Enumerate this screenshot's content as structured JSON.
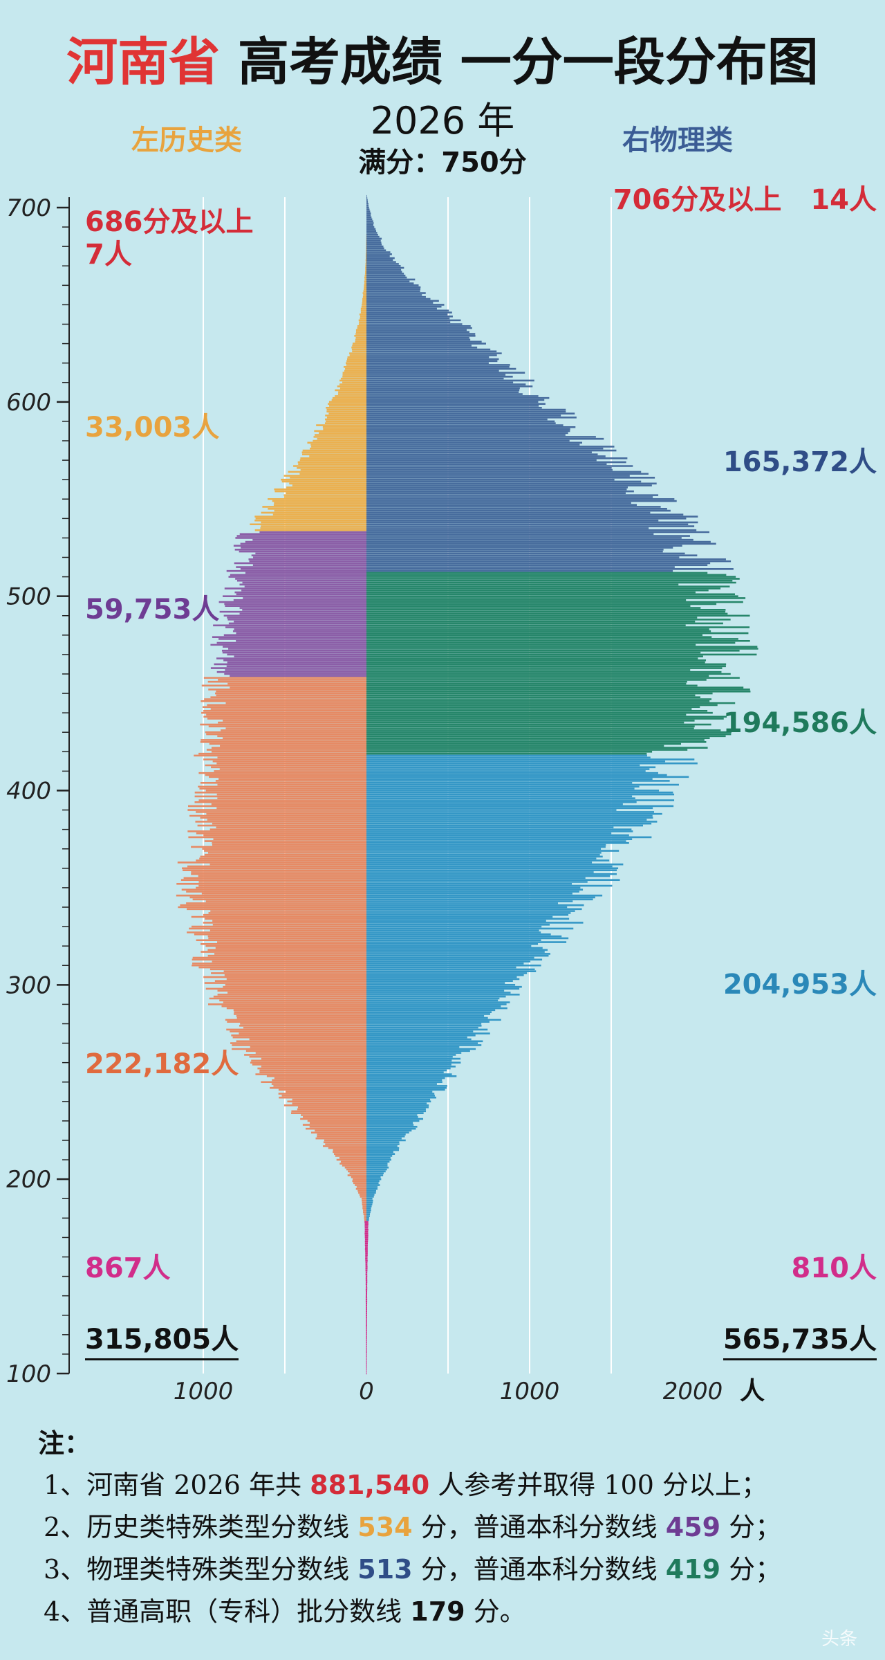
{
  "title": {
    "province": "河南省",
    "rest": "高考成绩 一分一段分布图"
  },
  "year": "2026 年",
  "full_score": {
    "label": "满分：",
    "value": "750分"
  },
  "left_label": "左历史类",
  "right_label": "右物理类",
  "colors": {
    "history_top": "#ebb04f",
    "history_special": "#8b5ea7",
    "history_undergrad": "#e68a64",
    "physics_top": "#476c9d",
    "physics_special": "#26866a",
    "physics_undergrad": "#3497c6",
    "vocational": "#d12d8a",
    "background": "#c6e8ee"
  },
  "labels": {
    "left_top": {
      "value": "686分及以上",
      "count": "7人"
    },
    "right_top": {
      "value": "706分及以上",
      "count": "14人"
    },
    "hist_top_count": "33,003人",
    "hist_special_count": "59,753人",
    "hist_undergrad_count": "222,182人",
    "hist_vocational_count": "867人",
    "hist_total": "315,805人",
    "phys_top_count": "165,372人",
    "phys_special_count": "194,586人",
    "phys_undergrad_count": "204,953人",
    "phys_vocational_count": "810人",
    "phys_total": "565,735人"
  },
  "chart_data": {
    "type": "bar",
    "orientation": "horizontal-mirrored",
    "y_axis": {
      "min": 100,
      "max": 700,
      "ticks": [
        100,
        200,
        300,
        400,
        500,
        600,
        700
      ]
    },
    "x_axis": {
      "left_ticks": [
        "1000",
        "0"
      ],
      "right_ticks": [
        "1000",
        "2000"
      ],
      "unit": "人"
    },
    "thresholds": {
      "history_special": 534,
      "history_undergrad": 459,
      "physics_special": 513,
      "physics_undergrad": 419,
      "vocational": 179
    },
    "history_profile": [
      [
        100,
        2
      ],
      [
        150,
        5
      ],
      [
        178,
        12
      ],
      [
        190,
        30
      ],
      [
        200,
        90
      ],
      [
        210,
        170
      ],
      [
        220,
        280
      ],
      [
        230,
        390
      ],
      [
        240,
        480
      ],
      [
        250,
        600
      ],
      [
        260,
        700
      ],
      [
        270,
        780
      ],
      [
        280,
        850
      ],
      [
        290,
        900
      ],
      [
        300,
        940
      ],
      [
        310,
        980
      ],
      [
        320,
        1010
      ],
      [
        330,
        1040
      ],
      [
        340,
        1060
      ],
      [
        350,
        1070
      ],
      [
        360,
        1060
      ],
      [
        370,
        1040
      ],
      [
        380,
        1010
      ],
      [
        390,
        1000
      ],
      [
        400,
        990
      ],
      [
        410,
        975
      ],
      [
        420,
        965
      ],
      [
        430,
        955
      ],
      [
        440,
        945
      ],
      [
        450,
        930
      ],
      [
        460,
        910
      ],
      [
        470,
        895
      ],
      [
        480,
        870
      ],
      [
        490,
        850
      ],
      [
        500,
        820
      ],
      [
        510,
        790
      ],
      [
        520,
        760
      ],
      [
        534,
        720
      ],
      [
        540,
        640
      ],
      [
        550,
        560
      ],
      [
        560,
        480
      ],
      [
        570,
        390
      ],
      [
        580,
        330
      ],
      [
        590,
        270
      ],
      [
        600,
        210
      ],
      [
        610,
        160
      ],
      [
        620,
        120
      ],
      [
        630,
        80
      ],
      [
        640,
        50
      ],
      [
        650,
        30
      ],
      [
        660,
        15
      ],
      [
        670,
        6
      ],
      [
        686,
        1
      ]
    ],
    "physics_profile": [
      [
        100,
        2
      ],
      [
        150,
        5
      ],
      [
        178,
        12
      ],
      [
        190,
        40
      ],
      [
        200,
        90
      ],
      [
        210,
        150
      ],
      [
        220,
        230
      ],
      [
        230,
        310
      ],
      [
        240,
        390
      ],
      [
        250,
        480
      ],
      [
        260,
        560
      ],
      [
        270,
        650
      ],
      [
        280,
        740
      ],
      [
        290,
        830
      ],
      [
        300,
        920
      ],
      [
        310,
        1010
      ],
      [
        320,
        1100
      ],
      [
        330,
        1190
      ],
      [
        340,
        1280
      ],
      [
        350,
        1380
      ],
      [
        360,
        1470
      ],
      [
        370,
        1560
      ],
      [
        380,
        1630
      ],
      [
        390,
        1700
      ],
      [
        400,
        1780
      ],
      [
        410,
        1850
      ],
      [
        419,
        1880
      ],
      [
        430,
        2060
      ],
      [
        440,
        2120
      ],
      [
        450,
        2160
      ],
      [
        460,
        2180
      ],
      [
        470,
        2190
      ],
      [
        480,
        2180
      ],
      [
        490,
        2160
      ],
      [
        500,
        2140
      ],
      [
        510,
        2100
      ],
      [
        520,
        2030
      ],
      [
        530,
        1960
      ],
      [
        540,
        1870
      ],
      [
        550,
        1780
      ],
      [
        560,
        1650
      ],
      [
        570,
        1530
      ],
      [
        580,
        1380
      ],
      [
        590,
        1230
      ],
      [
        600,
        1090
      ],
      [
        610,
        960
      ],
      [
        620,
        830
      ],
      [
        630,
        700
      ],
      [
        640,
        570
      ],
      [
        650,
        440
      ],
      [
        660,
        310
      ],
      [
        670,
        200
      ],
      [
        680,
        110
      ],
      [
        690,
        50
      ],
      [
        700,
        15
      ],
      [
        706,
        3
      ]
    ]
  },
  "notes": {
    "heading": "注：",
    "n1": {
      "a": "1、河南省 2026 年共 ",
      "b": "881,540",
      "c": " 人参考并取得 100 分以上；"
    },
    "n2": {
      "a": "2、历史类特殊类型分数线 ",
      "b": "534",
      "c": " 分，普通本科分数线 ",
      "d": "459",
      "e": " 分；"
    },
    "n3": {
      "a": "3、物理类特殊类型分数线 ",
      "b": "513",
      "c": " 分，普通本科分数线 ",
      "d": "419",
      "e": " 分；"
    },
    "n4": {
      "a": "4、普通高职（专科）批分数线 ",
      "b": "179",
      "c": " 分。"
    }
  },
  "watermark": "头条"
}
